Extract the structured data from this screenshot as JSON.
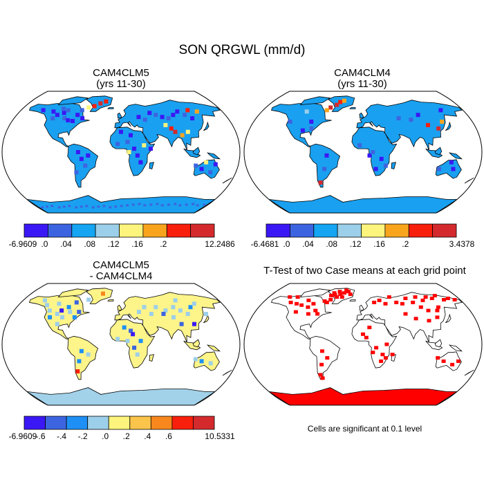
{
  "figure": {
    "title": "SON QRGWL (mm/d)"
  },
  "panels": [
    {
      "id": "cam4clm5",
      "title_line1": "CAM4CLM5",
      "title_line2": "(yrs 11-30)",
      "base_color": "#1aa0f0",
      "antarctica_color": "#1aa0f0",
      "colorbar": {
        "colors": [
          "#3a18f5",
          "#3c64e0",
          "#15a5f2",
          "#9ccfe9",
          "#fdf47d",
          "#f8a51d",
          "#f81f0d",
          "#d42a2d"
        ],
        "labels": [
          "-6.9609",
          ".0",
          ".04",
          ".08",
          ".12",
          ".16",
          ".2",
          "12.2486"
        ]
      }
    },
    {
      "id": "cam4clm4",
      "title_line1": "CAM4CLM4",
      "title_line2": "(yrs 11-30)",
      "base_color": "#1aa0f0",
      "antarctica_color": "#1aa0f0",
      "colorbar": {
        "colors": [
          "#3a18f5",
          "#3c64e0",
          "#15a5f2",
          "#9ccfe9",
          "#fdf47d",
          "#f8a51d",
          "#f81f0d",
          "#d42a2d"
        ],
        "labels": [
          "-6.4681",
          ".0",
          ".04",
          ".08",
          ".12",
          ".16",
          ".2",
          "3.4378"
        ]
      }
    },
    {
      "id": "difference",
      "title_line1": "CAM4CLM5",
      "title_line2": "- CAM4CLM4",
      "base_color": "#fdf48a",
      "antarctica_color": "#a2d2ea",
      "colorbar": {
        "colors": [
          "#3a18f5",
          "#3c64e0",
          "#1e90f5",
          "#9ccfe9",
          "#fdf47d",
          "#fbc44a",
          "#f8881d",
          "#f81f0d",
          "#d42a2d"
        ],
        "labels": [
          "-6.9609",
          "-.6",
          "-.4",
          "-.2",
          ".0",
          ".2",
          ".4",
          ".6",
          "10.5331"
        ]
      }
    },
    {
      "id": "ttest",
      "title_line1": "T-Test of two Case means at each grid point",
      "title_line2": "",
      "base_color": "#ffffff",
      "antarctica_color": "#ff0000",
      "note": "Cells are significant at 0.1 level"
    }
  ]
}
